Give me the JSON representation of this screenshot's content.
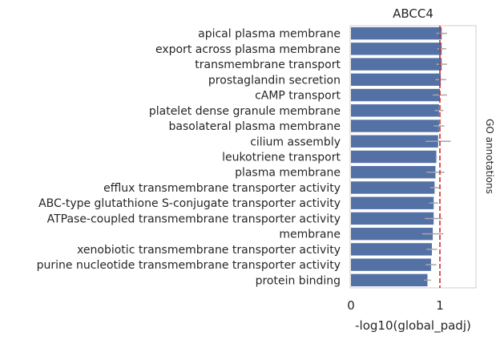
{
  "chart_data": {
    "type": "bar",
    "orientation": "horizontal",
    "title": "ABCC4",
    "xlabel": "-log10(global_padj)",
    "side_label": "GO annotations",
    "xlim": [
      0,
      1.4
    ],
    "x_ticks": [
      0,
      1
    ],
    "x_tick_labels": [
      "0",
      "1"
    ],
    "threshold": 1.0,
    "threshold_color": "#d62728",
    "bar_color": "#5471a5",
    "errorbar_color": "#a6a6a6",
    "grid": false,
    "categories": [
      "apical plasma membrane",
      "export across plasma membrane",
      "transmembrane transport",
      "prostaglandin secretion",
      "cAMP transport",
      "platelet dense granule membrane",
      "basolateral plasma membrane",
      "cilium assembly",
      "leukotriene transport",
      "plasma membrane",
      "efflux transmembrane transporter activity",
      "ABC-type glutathione S-conjugate transporter activity",
      "ATPase-coupled transmembrane transporter activity",
      "membrane",
      "xenobiotic transmembrane transporter activity",
      "purine nucleotide transmembrane transporter activity",
      "protein binding"
    ],
    "values": [
      1.02,
      1.02,
      1.02,
      1.01,
      1.0,
      0.99,
      0.99,
      0.98,
      0.96,
      0.95,
      0.94,
      0.93,
      0.93,
      0.92,
      0.91,
      0.9,
      0.86
    ],
    "error": [
      0.06,
      0.05,
      0.06,
      0.06,
      0.08,
      0.05,
      0.06,
      0.14,
      0.01,
      0.1,
      0.05,
      0.05,
      0.1,
      0.12,
      0.06,
      0.06,
      0.04
    ]
  }
}
